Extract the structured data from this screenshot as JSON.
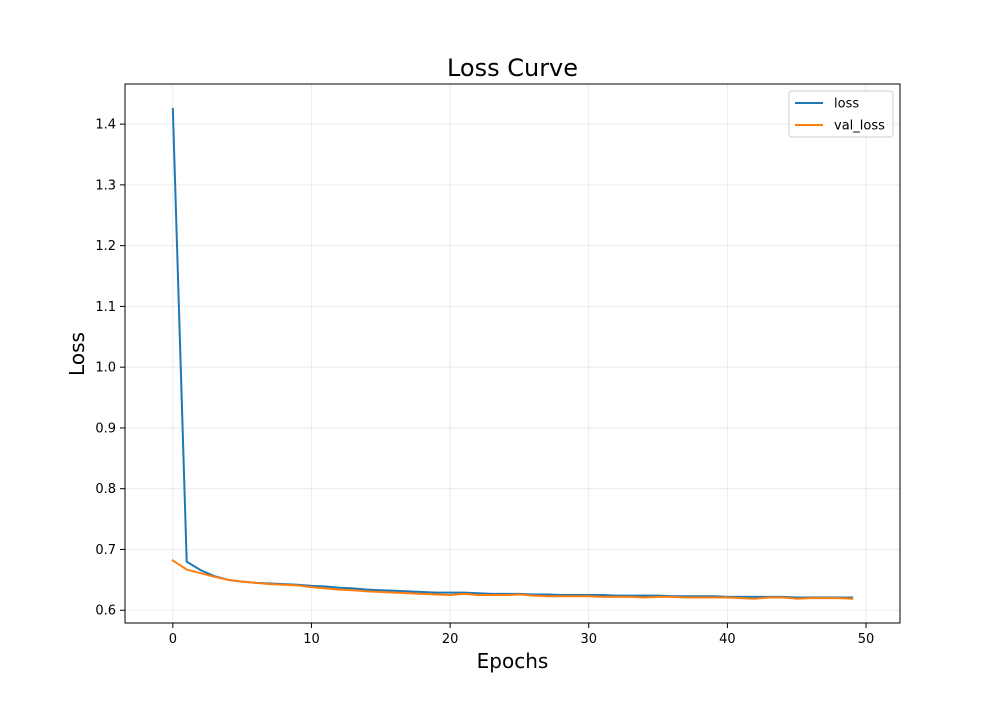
{
  "chart_data": {
    "type": "line",
    "title": "Loss Curve",
    "xlabel": "Epochs",
    "ylabel": "Loss",
    "xlim": [
      -3.45,
      52.45
    ],
    "ylim": [
      0.579,
      1.466
    ],
    "xticks": [
      0,
      10,
      20,
      30,
      40,
      50
    ],
    "yticks": [
      0.6,
      0.7,
      0.8,
      0.9,
      1.0,
      1.1,
      1.2,
      1.3,
      1.4
    ],
    "ytick_labels": [
      "0.6",
      "0.7",
      "0.8",
      "0.9",
      "1.0",
      "1.1",
      "1.2",
      "1.3",
      "1.4"
    ],
    "grid": true,
    "legend_position": "upper right",
    "x": [
      0,
      1,
      2,
      3,
      4,
      5,
      6,
      7,
      8,
      9,
      10,
      11,
      12,
      13,
      14,
      15,
      16,
      17,
      18,
      19,
      20,
      21,
      22,
      23,
      24,
      25,
      26,
      27,
      28,
      29,
      30,
      31,
      32,
      33,
      34,
      35,
      36,
      37,
      38,
      39,
      40,
      41,
      42,
      43,
      44,
      45,
      46,
      47,
      48,
      49
    ],
    "series": [
      {
        "name": "loss",
        "color": "#1f77b4",
        "values": [
          1.425,
          0.68,
          0.666,
          0.656,
          0.65,
          0.647,
          0.645,
          0.644,
          0.643,
          0.642,
          0.64,
          0.639,
          0.637,
          0.636,
          0.634,
          0.633,
          0.632,
          0.631,
          0.63,
          0.629,
          0.629,
          0.629,
          0.628,
          0.627,
          0.627,
          0.627,
          0.626,
          0.626,
          0.625,
          0.625,
          0.625,
          0.625,
          0.624,
          0.624,
          0.624,
          0.624,
          0.623,
          0.623,
          0.623,
          0.623,
          0.622,
          0.622,
          0.622,
          0.622,
          0.622,
          0.621,
          0.621,
          0.621,
          0.621,
          0.621
        ]
      },
      {
        "name": "val_loss",
        "color": "#ff7f0e",
        "values": [
          0.682,
          0.667,
          0.661,
          0.655,
          0.65,
          0.647,
          0.645,
          0.643,
          0.642,
          0.641,
          0.638,
          0.636,
          0.634,
          0.633,
          0.631,
          0.63,
          0.629,
          0.628,
          0.627,
          0.626,
          0.625,
          0.627,
          0.625,
          0.625,
          0.625,
          0.626,
          0.624,
          0.623,
          0.623,
          0.623,
          0.623,
          0.622,
          0.622,
          0.622,
          0.621,
          0.622,
          0.622,
          0.621,
          0.621,
          0.621,
          0.621,
          0.62,
          0.619,
          0.621,
          0.621,
          0.619,
          0.62,
          0.62,
          0.62,
          0.619
        ]
      }
    ]
  }
}
